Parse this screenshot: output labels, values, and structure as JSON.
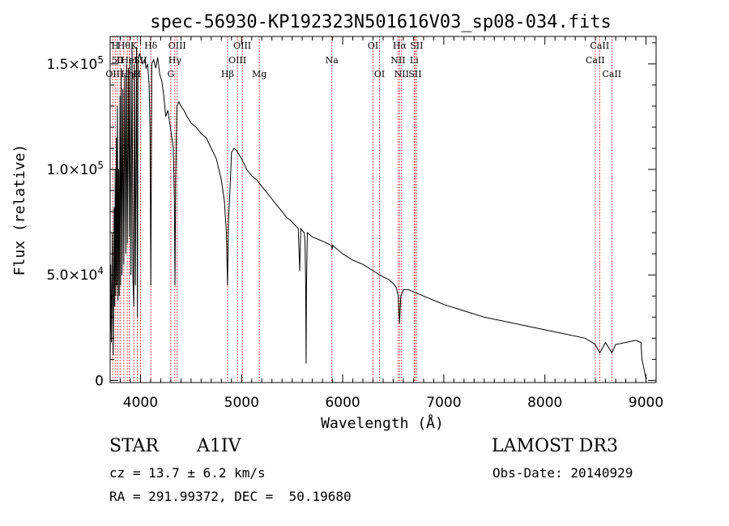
{
  "chart_data": {
    "type": "line",
    "title": "spec-56930-KP192323N501616V03_sp08-034.fits",
    "xlabel": "Wavelength (Å)",
    "ylabel": "Flux (relative)",
    "xlim": [
      3700,
      9100
    ],
    "ylim": [
      -1000,
      163000
    ],
    "x_ticks": [
      4000,
      5000,
      6000,
      7000,
      8000,
      9000
    ],
    "x_tick_labels": [
      "4000",
      "5000",
      "6000",
      "7000",
      "8000",
      "9000"
    ],
    "y_ticks": [
      {
        "value": 0,
        "mantissa": "0",
        "exponent": ""
      },
      {
        "value": 50000,
        "mantissa": "5.0×10",
        "exponent": "4"
      },
      {
        "value": 100000,
        "mantissa": "1.0×10",
        "exponent": "5"
      },
      {
        "value": 150000,
        "mantissa": "1.5×10",
        "exponent": "5"
      }
    ],
    "line_color": "#000000",
    "marker_color": "#cc0000",
    "series": [
      {
        "name": "flux",
        "x": [
          3700,
          3705,
          3712,
          3722,
          3730,
          3734,
          3740,
          3745,
          3750,
          3756,
          3762,
          3766,
          3772,
          3778,
          3784,
          3790,
          3797,
          3803,
          3810,
          3818,
          3826,
          3835,
          3845,
          3855,
          3862,
          3870,
          3880,
          3889,
          3896,
          3906,
          3916,
          3925,
          3934,
          3940,
          3950,
          3961,
          3970,
          3976,
          3990,
          4000,
          4020,
          4040,
          4055,
          4070,
          4085,
          4094,
          4102,
          4112,
          4130,
          4150,
          4170,
          4190,
          4210,
          4230,
          4250,
          4270,
          4290,
          4310,
          4325,
          4335,
          4341,
          4348,
          4360,
          4380,
          4400,
          4430,
          4460,
          4500,
          4550,
          4600,
          4650,
          4700,
          4750,
          4800,
          4830,
          4850,
          4861,
          4870,
          4885,
          4900,
          4925,
          4950,
          5000,
          5050,
          5100,
          5150,
          5200,
          5250,
          5300,
          5350,
          5400,
          5450,
          5480,
          5500,
          5540,
          5560,
          5575,
          5585,
          5600,
          5620,
          5628,
          5634,
          5638,
          5642,
          5650,
          5700,
          5800,
          5890,
          5895,
          5900,
          6000,
          6100,
          6200,
          6300,
          6400,
          6450,
          6500,
          6530,
          6550,
          6562,
          6575,
          6600,
          6650,
          6700,
          6800,
          6900,
          7000,
          7200,
          7400,
          7600,
          7800,
          8000,
          8200,
          8400,
          8498,
          8542,
          8600,
          8662,
          8700,
          8800,
          8900,
          8950,
          8960,
          9000,
          9010
        ],
        "values": [
          5000,
          55000,
          18000,
          70000,
          12000,
          35000,
          82000,
          35000,
          100000,
          40000,
          115000,
          45000,
          130000,
          38000,
          100000,
          40000,
          135000,
          45000,
          148000,
          50000,
          138000,
          55000,
          145000,
          60000,
          150000,
          65000,
          148000,
          68000,
          153000,
          50000,
          160000,
          48000,
          35000,
          150000,
          45000,
          158000,
          30000,
          152000,
          155000,
          153000,
          150000,
          152000,
          148000,
          150000,
          140000,
          120000,
          45000,
          150000,
          152000,
          148000,
          153000,
          145000,
          142000,
          135000,
          125000,
          128000,
          122000,
          115000,
          110000,
          85000,
          45000,
          95000,
          130000,
          132000,
          130000,
          128000,
          125000,
          122000,
          120000,
          117000,
          115000,
          110000,
          105000,
          95000,
          85000,
          70000,
          45000,
          75000,
          90000,
          108000,
          110000,
          109000,
          105000,
          100000,
          97000,
          95000,
          92000,
          89000,
          86000,
          83000,
          80000,
          77000,
          76000,
          75000,
          73000,
          72000,
          52000,
          72000,
          71000,
          70000,
          65000,
          45000,
          8000,
          45000,
          70000,
          68000,
          66000,
          64000,
          62000,
          64000,
          60000,
          57000,
          55000,
          52000,
          49000,
          48000,
          46000,
          44000,
          40000,
          27000,
          40000,
          43000,
          43000,
          42000,
          40000,
          38000,
          36000,
          33000,
          30000,
          28000,
          26000,
          24000,
          22000,
          20000,
          17000,
          13000,
          18000,
          13000,
          17000,
          18000,
          19000,
          18000,
          10000,
          1000,
          1000
        ]
      }
    ],
    "line_markers": [
      {
        "wl": 3726,
        "row": 2,
        "label": "OII"
      },
      {
        "wl": 3750,
        "row": 0,
        "label": "H"
      },
      {
        "wl": 3771,
        "row": 1,
        "label": "50"
      },
      {
        "wl": 3798,
        "row": 1,
        "label": "II"
      },
      {
        "wl": 3835,
        "row": 0,
        "label": "Hθ"
      },
      {
        "wl": 3869,
        "row": 2,
        "label": "Hη"
      },
      {
        "wl": 3889,
        "row": 1,
        "label": "HeI"
      },
      {
        "wl": 3934,
        "row": 0,
        "label": "K"
      },
      {
        "wl": 3968,
        "row": 2,
        "label": "H"
      },
      {
        "wl": 4000,
        "row": 1,
        "label": "SII"
      },
      {
        "wl": 4102,
        "row": 0,
        "label": "Hδ"
      },
      {
        "wl": 4300,
        "row": 2,
        "label": "G"
      },
      {
        "wl": 4340,
        "row": 1,
        "label": "Hγ"
      },
      {
        "wl": 4363,
        "row": 0,
        "label": "OIII"
      },
      {
        "wl": 4861,
        "row": 2,
        "label": "Hβ"
      },
      {
        "wl": 4959,
        "row": 1,
        "label": "OIII"
      },
      {
        "wl": 5007,
        "row": 0,
        "label": "OIII"
      },
      {
        "wl": 5175,
        "row": 2,
        "label": "Mg"
      },
      {
        "wl": 5893,
        "row": 1,
        "label": "Na"
      },
      {
        "wl": 6300,
        "row": 0,
        "label": "OI"
      },
      {
        "wl": 6364,
        "row": 2,
        "label": "OI"
      },
      {
        "wl": 6548,
        "row": 1,
        "label": "NII"
      },
      {
        "wl": 6563,
        "row": 0,
        "label": "Hα"
      },
      {
        "wl": 6583,
        "row": 2,
        "label": "NII"
      },
      {
        "wl": 6707,
        "row": 1,
        "label": "Li"
      },
      {
        "wl": 6716,
        "row": 2,
        "label": "SII"
      },
      {
        "wl": 6731,
        "row": 0,
        "label": "SII"
      },
      {
        "wl": 8498,
        "row": 1,
        "label": "CaII"
      },
      {
        "wl": 8542,
        "row": 0,
        "label": "CaII"
      },
      {
        "wl": 8662,
        "row": 2,
        "label": "CaII"
      }
    ]
  },
  "info": {
    "object_class": "STAR",
    "subclass": "A1IV",
    "survey": "LAMOST DR3",
    "cz": "cz = 13.7 ± 6.2 km/s",
    "obs_date": "Obs-Date: 20140929",
    "coords": "RA = 291.99372, DEC =  50.19680"
  }
}
